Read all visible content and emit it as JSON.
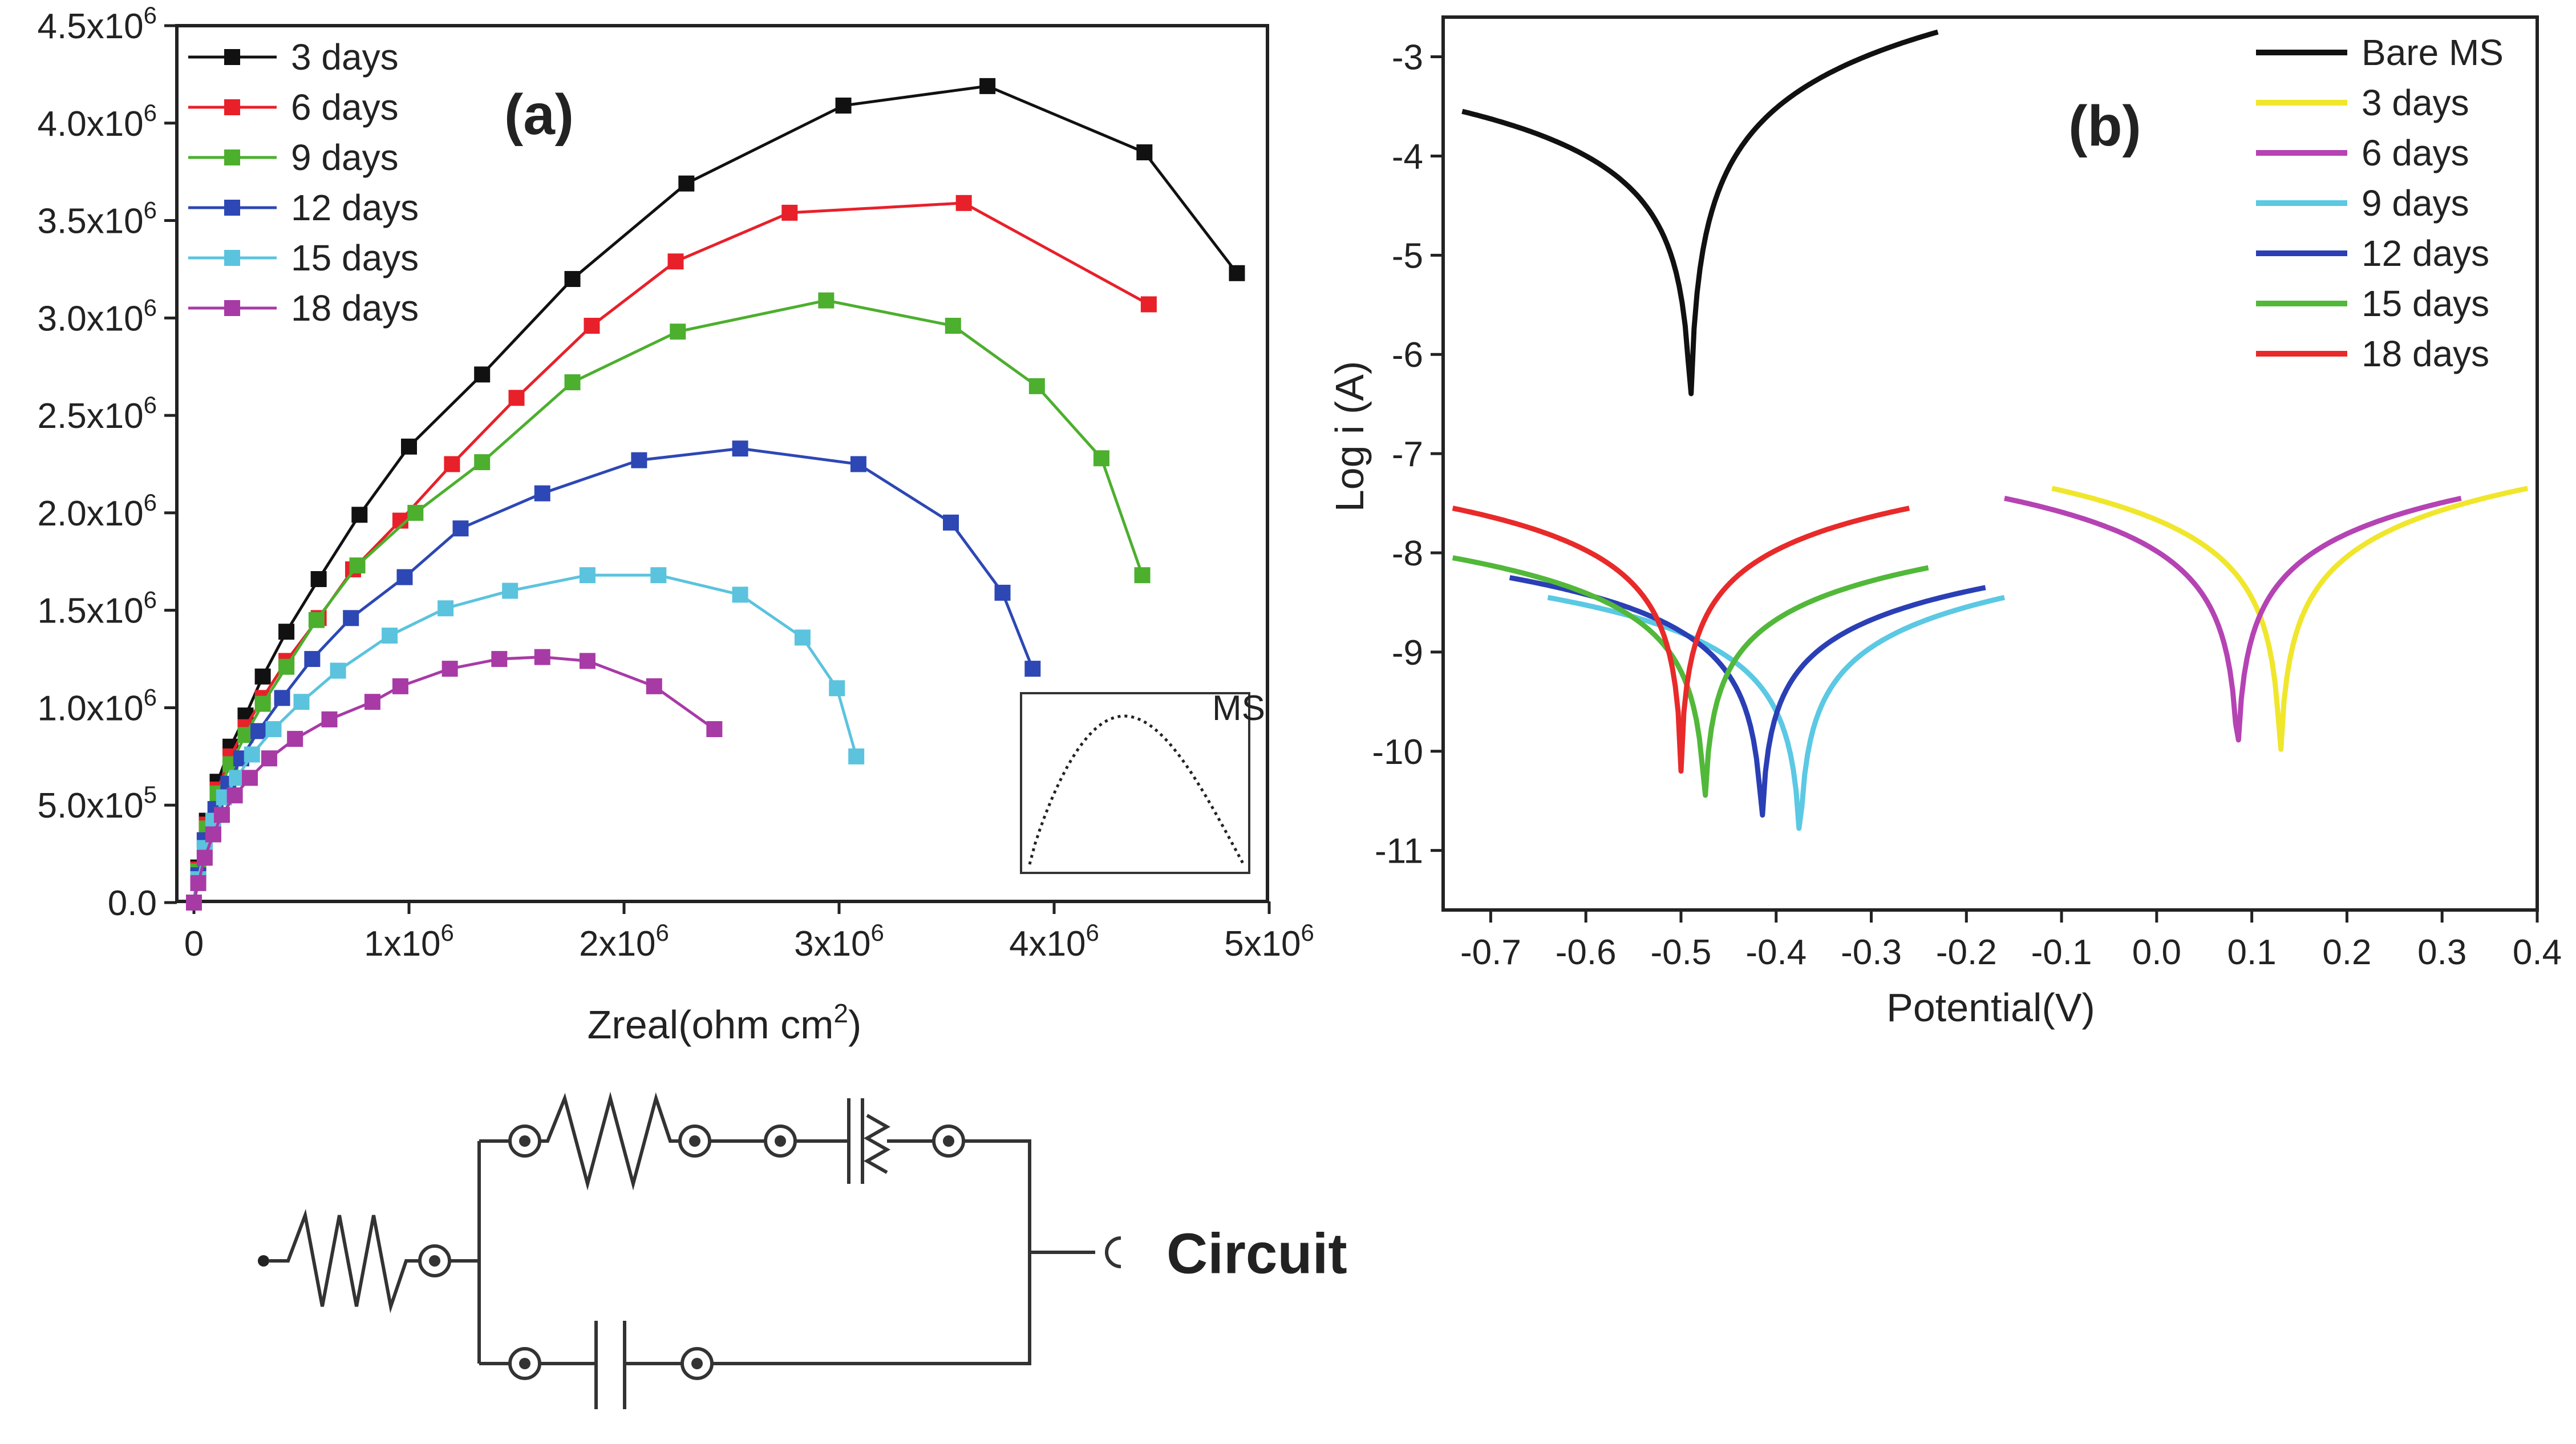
{
  "chart_data": [
    {
      "type": "scatter",
      "panel_label": "(a)",
      "xlabel": "Zreal(ohm cm",
      "xlabel_sup": "2",
      "xlabel_tail": ")",
      "ylabel": "",
      "xlim": [
        0,
        5000000
      ],
      "ylim": [
        0,
        4500000
      ],
      "x_ticks": [
        {
          "value": 0,
          "base": "0",
          "exp": ""
        },
        {
          "value": 1000000,
          "base": "1x10",
          "exp": "6"
        },
        {
          "value": 2000000,
          "base": "2x10",
          "exp": "6"
        },
        {
          "value": 3000000,
          "base": "3x10",
          "exp": "6"
        },
        {
          "value": 4000000,
          "base": "4x10",
          "exp": "6"
        },
        {
          "value": 5000000,
          "base": "5x10",
          "exp": "6"
        }
      ],
      "y_ticks": [
        {
          "value": 0,
          "base": "0.0",
          "exp": ""
        },
        {
          "value": 500000,
          "base": "5.0x10",
          "exp": "5"
        },
        {
          "value": 1000000,
          "base": "1.0x10",
          "exp": "6"
        },
        {
          "value": 1500000,
          "base": "1.5x10",
          "exp": "6"
        },
        {
          "value": 2000000,
          "base": "2.0x10",
          "exp": "6"
        },
        {
          "value": 2500000,
          "base": "2.5x10",
          "exp": "6"
        },
        {
          "value": 3000000,
          "base": "3.0x10",
          "exp": "6"
        },
        {
          "value": 3500000,
          "base": "3.5x10",
          "exp": "6"
        },
        {
          "value": 4000000,
          "base": "4.0x10",
          "exp": "6"
        },
        {
          "value": 4500000,
          "base": "4.5x10",
          "exp": "6"
        }
      ],
      "legend_position": "top-left",
      "series": [
        {
          "name": "3 days",
          "color": "#111111",
          "x": [
            0,
            20000,
            60000,
            110000,
            170000,
            240000,
            320000,
            430000,
            580000,
            770000,
            1000000,
            1340000,
            1760000,
            2290000,
            3020000,
            3690000,
            4420000,
            4850000
          ],
          "y": [
            0,
            180000,
            420000,
            620000,
            800000,
            960000,
            1160000,
            1390000,
            1660000,
            1990000,
            2340000,
            2710000,
            3200000,
            3690000,
            4090000,
            4190000,
            3850000,
            3230000
          ]
        },
        {
          "name": "6 days",
          "color": "#e8202a",
          "x": [
            0,
            20000,
            60000,
            110000,
            170000,
            240000,
            320000,
            430000,
            580000,
            740000,
            960000,
            1200000,
            1500000,
            1850000,
            2240000,
            2770000,
            3580000,
            4440000
          ],
          "y": [
            0,
            170000,
            400000,
            580000,
            750000,
            900000,
            1050000,
            1240000,
            1460000,
            1710000,
            1960000,
            2250000,
            2590000,
            2960000,
            3290000,
            3540000,
            3590000,
            3070000
          ]
        },
        {
          "name": "9 days",
          "color": "#4caf2e",
          "x": [
            0,
            20000,
            60000,
            110000,
            170000,
            240000,
            320000,
            430000,
            570000,
            760000,
            1030000,
            1340000,
            1760000,
            2250000,
            2940000,
            3530000,
            3920000,
            4220000,
            4410000
          ],
          "y": [
            0,
            160000,
            380000,
            560000,
            710000,
            860000,
            1020000,
            1210000,
            1450000,
            1730000,
            2000000,
            2260000,
            2670000,
            2930000,
            3090000,
            2960000,
            2650000,
            2280000,
            1680000
          ]
        },
        {
          "name": "12 days",
          "color": "#2d47b5",
          "x": [
            0,
            20000,
            50000,
            100000,
            160000,
            220000,
            300000,
            410000,
            550000,
            730000,
            980000,
            1240000,
            1620000,
            2070000,
            2540000,
            3090000,
            3520000,
            3760000,
            3900000
          ],
          "y": [
            0,
            140000,
            320000,
            480000,
            610000,
            740000,
            880000,
            1050000,
            1250000,
            1460000,
            1670000,
            1920000,
            2100000,
            2270000,
            2330000,
            2250000,
            1950000,
            1590000,
            1200000
          ]
        },
        {
          "name": "15 days",
          "color": "#5bc3de",
          "x": [
            0,
            20000,
            50000,
            90000,
            140000,
            200000,
            270000,
            370000,
            500000,
            670000,
            910000,
            1170000,
            1470000,
            1830000,
            2160000,
            2540000,
            2830000,
            2990000,
            3080000
          ],
          "y": [
            0,
            120000,
            280000,
            420000,
            540000,
            640000,
            760000,
            890000,
            1030000,
            1190000,
            1370000,
            1510000,
            1600000,
            1680000,
            1680000,
            1580000,
            1360000,
            1100000,
            750000
          ]
        },
        {
          "name": "18 days",
          "color": "#a83aa6",
          "x": [
            0,
            20000,
            50000,
            90000,
            130000,
            190000,
            260000,
            350000,
            470000,
            630000,
            830000,
            960000,
            1190000,
            1420000,
            1620000,
            1830000,
            2140000,
            2420000
          ],
          "y": [
            0,
            100000,
            230000,
            350000,
            450000,
            550000,
            640000,
            740000,
            840000,
            940000,
            1030000,
            1110000,
            1200000,
            1250000,
            1260000,
            1240000,
            1110000,
            890000
          ]
        }
      ],
      "inset": {
        "legend": "MS",
        "type": "line",
        "description_series": "Bare MS Nyquist arc"
      }
    },
    {
      "type": "line",
      "panel_label": "(b)",
      "xlabel": "Potential(V)",
      "ylabel": "Log i (A)",
      "xlim": [
        -0.75,
        0.4
      ],
      "ylim": [
        -11.6,
        -2.6
      ],
      "x_ticks": [
        "-0.7",
        "-0.6",
        "-0.5",
        "-0.4",
        "-0.3",
        "-0.2",
        "-0.1",
        "0.0",
        "0.1",
        "0.2",
        "0.3",
        "0.4"
      ],
      "x_tick_values": [
        -0.7,
        -0.6,
        -0.5,
        -0.4,
        -0.3,
        -0.2,
        -0.1,
        0.0,
        0.1,
        0.2,
        0.3,
        0.4
      ],
      "y_ticks": [
        "-3",
        "-4",
        "-5",
        "-6",
        "-7",
        "-8",
        "-9",
        "-10",
        "-11"
      ],
      "y_tick_values": [
        -3,
        -4,
        -5,
        -6,
        -7,
        -8,
        -9,
        -10,
        -11
      ],
      "legend_position": "top-right",
      "series": [
        {
          "name": "Bare MS",
          "color": "#111111",
          "ecorr": -0.49,
          "icorr_log": -6.7,
          "x_range": [
            -0.73,
            -0.23
          ],
          "log_left": -3.55,
          "log_right": -2.75
        },
        {
          "name": "3 days",
          "color": "#f0e62c",
          "ecorr": 0.13,
          "icorr_log": -10.2,
          "x_range": [
            -0.11,
            0.39
          ],
          "log_left": -7.35,
          "log_right": -7.35
        },
        {
          "name": "6 days",
          "color": "#b543b3",
          "ecorr": 0.085,
          "icorr_log": -10.2,
          "x_range": [
            -0.16,
            0.32
          ],
          "log_left": -7.45,
          "log_right": -7.45
        },
        {
          "name": "9 days",
          "color": "#5bc8e4",
          "ecorr": -0.375,
          "icorr_log": -11.05,
          "x_range": [
            -0.64,
            -0.16
          ],
          "log_left": -8.45,
          "log_right": -8.45
        },
        {
          "name": "12 days",
          "color": "#2a3fb5",
          "ecorr": -0.415,
          "icorr_log": -10.85,
          "x_range": [
            -0.68,
            -0.18
          ],
          "log_left": -8.25,
          "log_right": -8.35
        },
        {
          "name": "15 days",
          "color": "#52b83a",
          "ecorr": -0.475,
          "icorr_log": -10.65,
          "x_range": [
            -0.74,
            -0.24
          ],
          "log_left": -8.05,
          "log_right": -8.15
        },
        {
          "name": "18 days",
          "color": "#e82a2a",
          "ecorr": -0.5,
          "icorr_log": -10.2,
          "x_range": [
            -0.74,
            -0.26
          ],
          "log_left": -7.55,
          "log_right": -7.55
        }
      ]
    }
  ],
  "circuit": {
    "label": "Circuit"
  }
}
